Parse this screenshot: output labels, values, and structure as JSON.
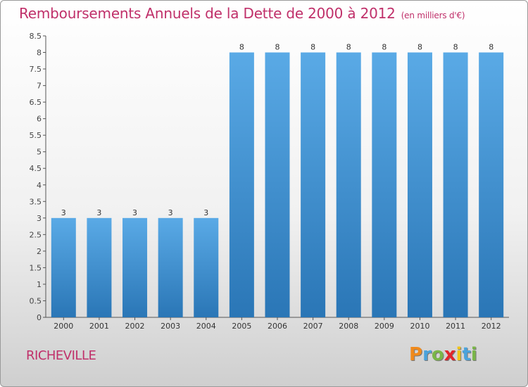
{
  "title": "Remboursements Annuels de la Dette de 2000 à 2012",
  "unit": "(en milliers d'€)",
  "place": "RICHEVILLE",
  "logo": {
    "letters": [
      "P",
      "r",
      "o",
      "x",
      "i",
      "t",
      "i"
    ],
    "colors": [
      "#f08a1c",
      "#4aa3dc",
      "#7ab648",
      "#e2262b",
      "#f0c419",
      "#4aa3dc",
      "#7ab648"
    ]
  },
  "colors": {
    "bar_top": "#5aaae6",
    "bar_bottom": "#2a76b6",
    "title": "#c0306a"
  },
  "chart_data": {
    "type": "bar",
    "categories": [
      "2000",
      "2001",
      "2002",
      "2003",
      "2004",
      "2005",
      "2006",
      "2007",
      "2008",
      "2009",
      "2010",
      "2011",
      "2012"
    ],
    "values": [
      3,
      3,
      3,
      3,
      3,
      8,
      8,
      8,
      8,
      8,
      8,
      8,
      8
    ],
    "value_labels": [
      "3",
      "3",
      "3",
      "3",
      "3",
      "8",
      "8",
      "8",
      "8",
      "8",
      "8",
      "8",
      "8"
    ],
    "y_ticks": [
      "0",
      "0.5",
      "1",
      "1.5",
      "2",
      "2.5",
      "3",
      "3.5",
      "4",
      "4.5",
      "5",
      "5.5",
      "6",
      "6.5",
      "7",
      "7.5",
      "8",
      "8.5"
    ],
    "ylim": [
      0,
      8.5
    ],
    "grid": false
  }
}
